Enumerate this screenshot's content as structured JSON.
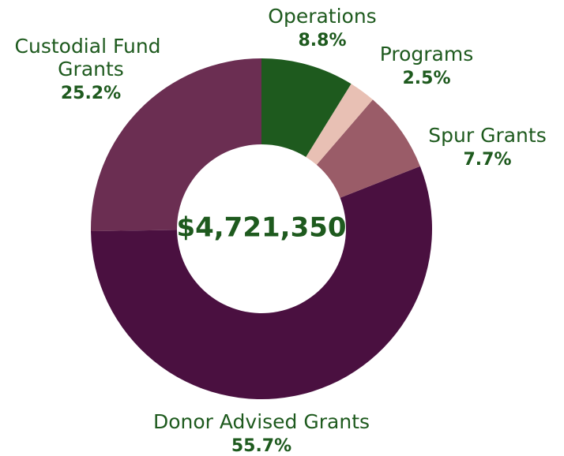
{
  "chart_data": {
    "type": "donut",
    "center_label": "$4,721,350",
    "categories": [
      "Operations",
      "Programs",
      "Spur Grants",
      "Donor Advised Grants",
      "Custodial Fund Grants"
    ],
    "values": [
      8.8,
      2.5,
      7.7,
      55.7,
      25.2
    ],
    "value_labels": [
      "8.8%",
      "2.5%",
      "7.7%",
      "55.7%",
      "25.2%"
    ],
    "colors": [
      "#1e5a1e",
      "#e8c0b4",
      "#9a5c68",
      "#4a1040",
      "#6b2e52"
    ]
  }
}
